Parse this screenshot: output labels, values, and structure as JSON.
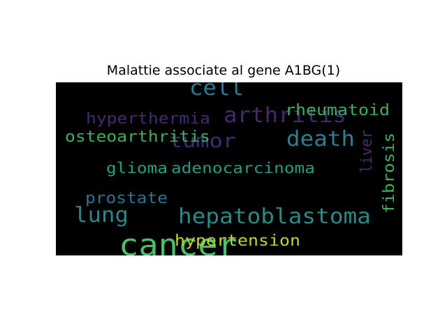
{
  "chart_data": {
    "type": "wordcloud",
    "title": "Malattie associate al gene A1BG(1)",
    "background": "#000000",
    "words": [
      {
        "text": "cancer",
        "color": "#4dbd6e"
      },
      {
        "text": "hepatoblastoma",
        "color": "#2a8a85"
      },
      {
        "text": "arthritis",
        "color": "#46286f"
      },
      {
        "text": "cell",
        "color": "#2a7c8e"
      },
      {
        "text": "death",
        "color": "#2b7f8e"
      },
      {
        "text": "tumor",
        "color": "#3f2d73"
      },
      {
        "text": "lung",
        "color": "#2b8588"
      },
      {
        "text": "rheumatoid",
        "color": "#3fae62"
      },
      {
        "text": "hyperthermia",
        "color": "#442a70"
      },
      {
        "text": "osteoarthritis",
        "color": "#3fae62"
      },
      {
        "text": "adenocarcinoma",
        "color": "#2b9a82"
      },
      {
        "text": "prostate",
        "color": "#2d7290"
      },
      {
        "text": "glioma",
        "color": "#26a083"
      },
      {
        "text": "hypertension",
        "color": "#c0d531"
      },
      {
        "text": "liver",
        "color": "#472a6f"
      },
      {
        "text": "fibrosis",
        "color": "#3fae62"
      }
    ]
  }
}
